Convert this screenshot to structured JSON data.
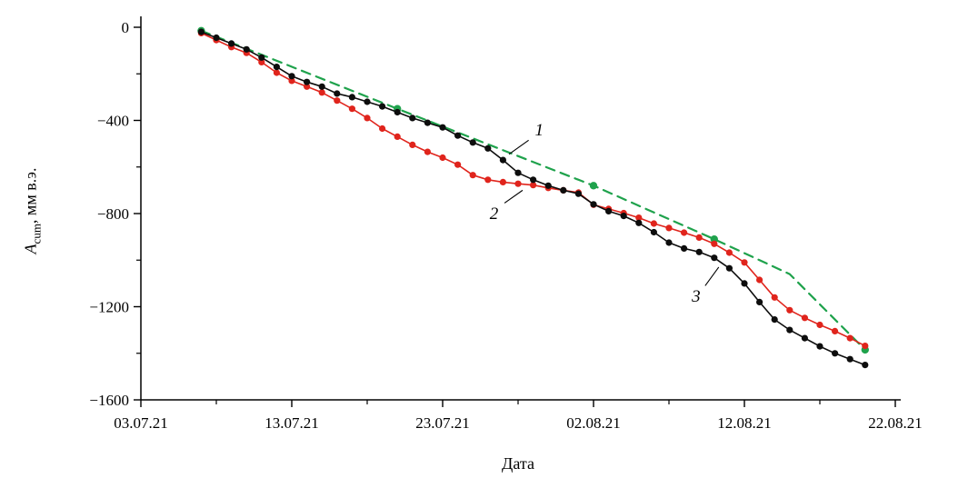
{
  "chart_data": {
    "type": "line",
    "title": "",
    "xlim": [
      0,
      50
    ],
    "ylim": [
      -1600,
      0
    ],
    "grid": false,
    "legend": "none (curves labeled by italic numbers 1, 2, 3 with leader lines)",
    "x_axis": {
      "label": "Дата",
      "ticks": [
        {
          "label": "03.07.21",
          "day": 0
        },
        {
          "label": "13.07.21",
          "day": 10
        },
        {
          "label": "23.07.21",
          "day": 20
        },
        {
          "label": "02.08.21",
          "day": 30
        },
        {
          "label": "12.08.21",
          "day": 40
        },
        {
          "label": "22.08.21",
          "day": 50
        }
      ],
      "minor_days": [
        5,
        15,
        25,
        35,
        45
      ]
    },
    "y_axis": {
      "label_parts": {
        "var": "A",
        "sub": "cum",
        "rest": ", мм в.э."
      },
      "ticks": [
        {
          "label": "0",
          "value": 0
        },
        {
          "label": "−400",
          "value": -400
        },
        {
          "label": "−800",
          "value": -800
        },
        {
          "label": "−1200",
          "value": -1200
        },
        {
          "label": "−1600",
          "value": -1600
        }
      ],
      "minor_values": [
        -200,
        -600,
        -1000,
        -1400
      ]
    },
    "series": [
      {
        "name": "1",
        "desc": "green dashed model line with sparse markers",
        "color": "#1fa24c",
        "dash": true,
        "line_width": 2.2,
        "marker_r": 4.2,
        "x": [
          4,
          17,
          30,
          38,
          43,
          48
        ],
        "y": [
          -15,
          -350,
          -680,
          -910,
          -1060,
          -1385
        ],
        "marker_x": [
          4,
          17,
          30,
          38,
          48
        ],
        "marker_y": [
          -15,
          -350,
          -680,
          -910,
          -1385
        ]
      },
      {
        "name": "2",
        "desc": "red measured curve, daily points",
        "color": "#e0241c",
        "dash": false,
        "line_width": 1.6,
        "marker_r": 3.6,
        "x": [
          4,
          5,
          6,
          7,
          8,
          9,
          10,
          11,
          12,
          13,
          14,
          15,
          16,
          17,
          18,
          19,
          20,
          21,
          22,
          23,
          24,
          25,
          26,
          27,
          28,
          29,
          30,
          31,
          32,
          33,
          34,
          35,
          36,
          37,
          38,
          39,
          40,
          41,
          42,
          43,
          44,
          45,
          46,
          47,
          48
        ],
        "y": [
          -25,
          -55,
          -85,
          -110,
          -150,
          -195,
          -230,
          -255,
          -280,
          -315,
          -350,
          -390,
          -435,
          -470,
          -505,
          -535,
          -560,
          -590,
          -635,
          -655,
          -665,
          -672,
          -678,
          -690,
          -700,
          -710,
          -762,
          -780,
          -798,
          -818,
          -843,
          -862,
          -882,
          -903,
          -930,
          -968,
          -1010,
          -1085,
          -1160,
          -1215,
          -1248,
          -1278,
          -1305,
          -1335,
          -1368
        ]
      },
      {
        "name": "3",
        "desc": "black measured curve, daily points",
        "color": "#0d0d0d",
        "dash": false,
        "line_width": 1.6,
        "marker_r": 3.6,
        "x": [
          4,
          5,
          6,
          7,
          8,
          9,
          10,
          11,
          12,
          13,
          14,
          15,
          16,
          17,
          18,
          19,
          20,
          21,
          22,
          23,
          24,
          25,
          26,
          27,
          28,
          29,
          30,
          31,
          32,
          33,
          34,
          35,
          36,
          37,
          38,
          39,
          40,
          41,
          42,
          43,
          44,
          45,
          46,
          47,
          48
        ],
        "y": [
          -20,
          -45,
          -70,
          -95,
          -130,
          -170,
          -210,
          -235,
          -255,
          -285,
          -300,
          -320,
          -340,
          -365,
          -390,
          -410,
          -430,
          -465,
          -495,
          -520,
          -570,
          -625,
          -655,
          -680,
          -700,
          -715,
          -760,
          -790,
          -810,
          -840,
          -880,
          -925,
          -950,
          -965,
          -990,
          -1035,
          -1100,
          -1180,
          -1255,
          -1300,
          -1335,
          -1370,
          -1400,
          -1425,
          -1450
        ]
      }
    ],
    "annotations": [
      {
        "text": "1",
        "label": {
          "x": 26.4,
          "y": -440
        },
        "leader": [
          [
            25.7,
            -485
          ],
          [
            24.4,
            -545
          ]
        ]
      },
      {
        "text": "2",
        "label": {
          "x": 23.4,
          "y": -800
        },
        "leader": [
          [
            24.1,
            -755
          ],
          [
            25.3,
            -700
          ]
        ]
      },
      {
        "text": "3",
        "label": {
          "x": 36.8,
          "y": -1155
        },
        "leader": [
          [
            37.4,
            -1110
          ],
          [
            38.3,
            -1030
          ]
        ]
      }
    ]
  }
}
